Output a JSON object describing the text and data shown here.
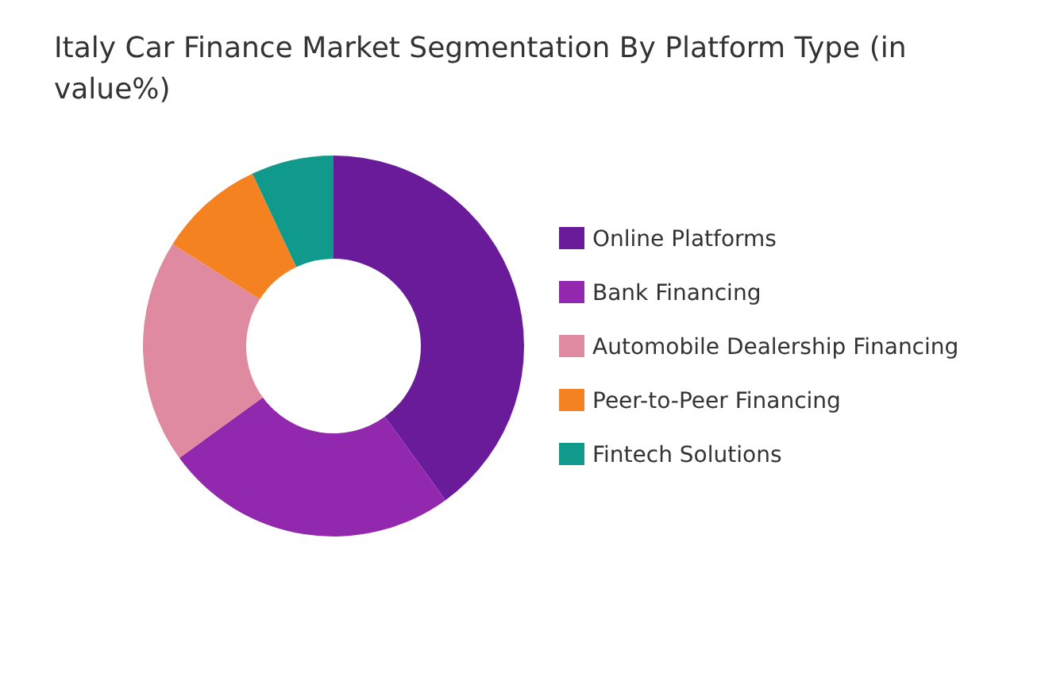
{
  "chart_data": {
    "type": "donut",
    "title": "Italy Car Finance Market Segmentation By Platform Type (in value%)",
    "categories": [
      "Online Platforms",
      "Bank Financing",
      "Automobile Dealership Financing",
      "Peer-to-Peer Financing",
      "Fintech Solutions"
    ],
    "values": [
      40,
      25,
      19,
      9,
      7
    ],
    "colors": [
      "#6a1b9a",
      "#9128ae",
      "#e08aa1",
      "#f58220",
      "#0f9a8c"
    ],
    "legend": "right"
  }
}
